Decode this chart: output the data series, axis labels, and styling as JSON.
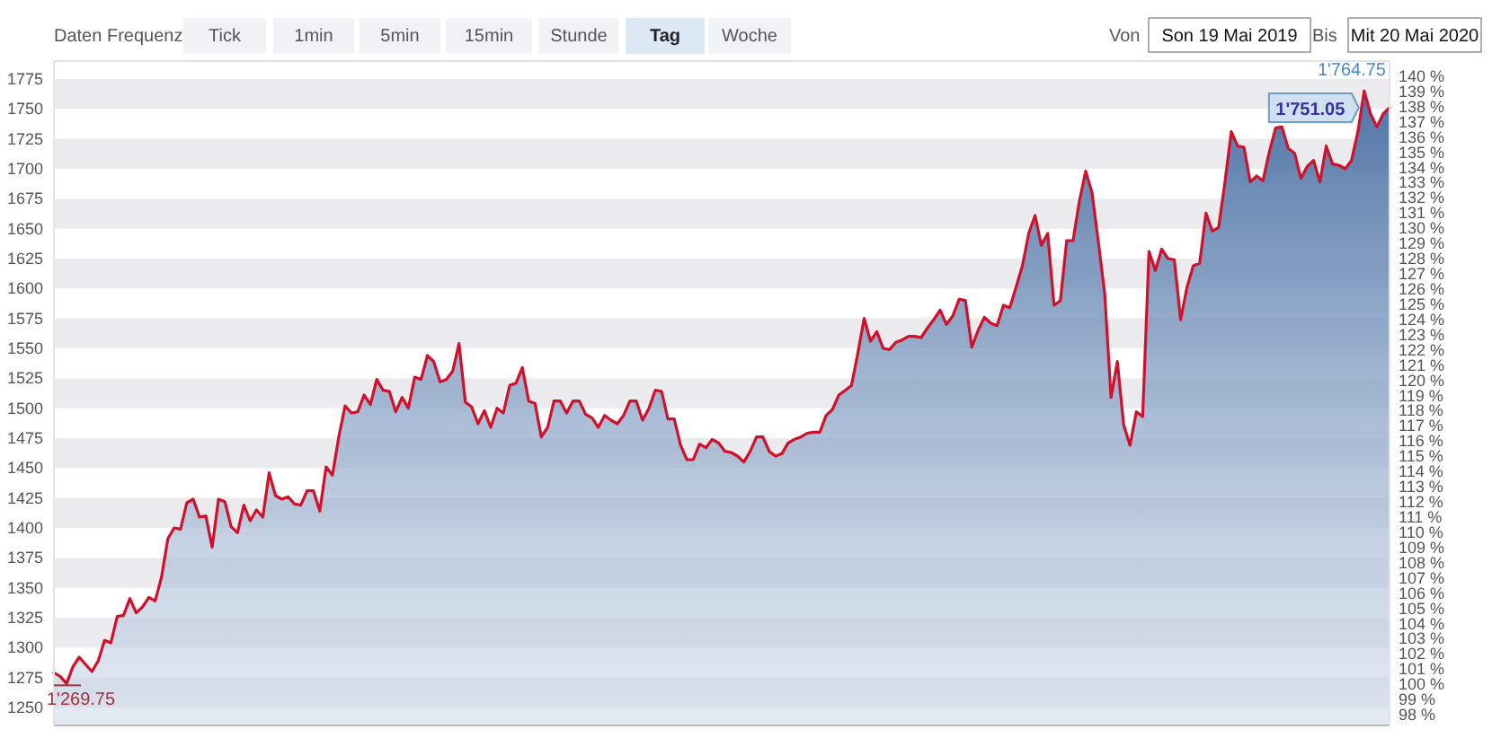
{
  "chart_data": {
    "type": "area",
    "categories": [
      null,
      null,
      null,
      null,
      null,
      null,
      null,
      null,
      null,
      null,
      null,
      null,
      null,
      null,
      null,
      null,
      null,
      null,
      null,
      null,
      null,
      null,
      null,
      null,
      null,
      null,
      null,
      null,
      null,
      null,
      null,
      null,
      null,
      null,
      null,
      null,
      null,
      null,
      null,
      null,
      null,
      null,
      null,
      null,
      null,
      null,
      null,
      null,
      null,
      null,
      null,
      null,
      null,
      null,
      null,
      null,
      null,
      null,
      null,
      null,
      null,
      null,
      null,
      null,
      null,
      null,
      null,
      null,
      null,
      null,
      null,
      null,
      null,
      null,
      null,
      null,
      null,
      null,
      null,
      null,
      null,
      null,
      null,
      null,
      null,
      null,
      null,
      null,
      null,
      null,
      null,
      null,
      null,
      null,
      null,
      null,
      null,
      null,
      null,
      null,
      null,
      null,
      null,
      null,
      null,
      null,
      null,
      null,
      null,
      null,
      null,
      null,
      null,
      null,
      null,
      null,
      null,
      null,
      null,
      null,
      null,
      null,
      null,
      null,
      null,
      null,
      null,
      null,
      null,
      null,
      null,
      null,
      null,
      null,
      null,
      null,
      null,
      null,
      null,
      null,
      null,
      null,
      null,
      null,
      null,
      null,
      null,
      null,
      null,
      null,
      null,
      null,
      null,
      null,
      null,
      null,
      null,
      null,
      null,
      null,
      null,
      null,
      null,
      null,
      null,
      null,
      null,
      null,
      null,
      null,
      null,
      null,
      null,
      null,
      null,
      null,
      null,
      null,
      null,
      null,
      null,
      null,
      null,
      null,
      null,
      null,
      null,
      null,
      null,
      null,
      null,
      null,
      null,
      null,
      null,
      null,
      null,
      null,
      null,
      null,
      null,
      null,
      null,
      null,
      null,
      null,
      null,
      null,
      null,
      null,
      null,
      null
    ],
    "series": [
      {
        "color": "#d0112b",
        "values": [
          1279,
          1276,
          1270,
          1284,
          1292,
          1286,
          1280,
          1289,
          1306,
          1304,
          1326,
          1327,
          1341,
          1329,
          1334,
          1342,
          1339,
          1359,
          1391,
          1400,
          1399,
          1421,
          1424,
          1409,
          1410,
          1384,
          1424,
          1422,
          1401,
          1396,
          1419,
          1406,
          1415,
          1409,
          1446,
          1427,
          1424,
          1426,
          1420,
          1419,
          1431,
          1431,
          1414,
          1451,
          1444,
          1476,
          1502,
          1496,
          1497,
          1511,
          1503,
          1524,
          1515,
          1514,
          1497,
          1509,
          1500,
          1526,
          1524,
          1544,
          1539,
          1522,
          1524,
          1531,
          1554,
          1505,
          1501,
          1487,
          1498,
          1484,
          1500,
          1496,
          1519,
          1521,
          1534,
          1506,
          1504,
          1476,
          1484,
          1506,
          1506,
          1496,
          1506,
          1506,
          1495,
          1492,
          1484,
          1494,
          1490,
          1487,
          1494,
          1506,
          1506,
          1490,
          1500,
          1515,
          1514,
          1491,
          1491,
          1469,
          1457,
          1457,
          1470,
          1467,
          1474,
          1471,
          1464,
          1463,
          1460,
          1455,
          1464,
          1476,
          1476,
          1464,
          1460,
          1462,
          1471,
          1474,
          1476,
          1479,
          1480,
          1480,
          1494,
          1499,
          1511,
          1515,
          1519,
          1546,
          1575,
          1556,
          1564,
          1550,
          1549,
          1555,
          1557,
          1560,
          1560,
          1559,
          1567,
          1574,
          1582,
          1570,
          1577,
          1591,
          1590,
          1551,
          1565,
          1576,
          1571,
          1569,
          1586,
          1584,
          1601,
          1619,
          1646,
          1661,
          1636,
          1646,
          1586,
          1590,
          1640,
          1640,
          1673,
          1698,
          1680,
          1639,
          1596,
          1509,
          1539,
          1486,
          1469,
          1497,
          1493,
          1631,
          1615,
          1633,
          1625,
          1624,
          1574,
          1601,
          1619,
          1621,
          1663,
          1648,
          1651,
          1689,
          1731,
          1719,
          1718,
          1689,
          1694,
          1690,
          1714,
          1734,
          1735,
          1717,
          1713,
          1692,
          1702,
          1707,
          1689,
          1719,
          1704,
          1703,
          1700,
          1707,
          1731,
          1765,
          1746,
          1735,
          1746,
          1751
        ]
      }
    ],
    "ylim": [
      1235,
      1790
    ],
    "yticks": [
      1250,
      1275,
      1300,
      1325,
      1350,
      1375,
      1400,
      1425,
      1450,
      1475,
      1500,
      1525,
      1550,
      1575,
      1600,
      1625,
      1650,
      1675,
      1700,
      1725,
      1750,
      1775
    ],
    "y2lim": [
      97.3,
      141
    ],
    "y2ticks": [
      {
        "value": 98,
        "label": "98 %"
      },
      {
        "value": 99,
        "label": "99 %"
      },
      {
        "value": 100,
        "label": "100 %"
      },
      {
        "value": 101,
        "label": "101 %"
      },
      {
        "value": 102,
        "label": "102 %"
      },
      {
        "value": 103,
        "label": "103 %"
      },
      {
        "value": 104,
        "label": "104 %"
      },
      {
        "value": 105,
        "label": "105 %"
      },
      {
        "value": 106,
        "label": "106 %"
      },
      {
        "value": 107,
        "label": "107 %"
      },
      {
        "value": 108,
        "label": "108 %"
      },
      {
        "value": 109,
        "label": "109 %"
      },
      {
        "value": 110,
        "label": "110 %"
      },
      {
        "value": 111,
        "label": "111 %"
      },
      {
        "value": 112,
        "label": "112 %"
      },
      {
        "value": 113,
        "label": "113 %"
      },
      {
        "value": 114,
        "label": "114 %"
      },
      {
        "value": 115,
        "label": "115 %"
      },
      {
        "value": 116,
        "label": "116 %"
      },
      {
        "value": 117,
        "label": "117 %"
      },
      {
        "value": 118,
        "label": "118 %"
      },
      {
        "value": 119,
        "label": "119 %"
      },
      {
        "value": 120,
        "label": "120 %"
      },
      {
        "value": 121,
        "label": "121 %"
      },
      {
        "value": 122,
        "label": "122 %"
      },
      {
        "value": 123,
        "label": "123 %"
      },
      {
        "value": 124,
        "label": "124 %"
      },
      {
        "value": 125,
        "label": "125 %"
      },
      {
        "value": 126,
        "label": "126 %"
      },
      {
        "value": 127,
        "label": "127 %"
      },
      {
        "value": 128,
        "label": "128 %"
      },
      {
        "value": 129,
        "label": "129 %"
      },
      {
        "value": 130,
        "label": "130 %"
      },
      {
        "value": 131,
        "label": "131 %"
      },
      {
        "value": 132,
        "label": "132 %"
      },
      {
        "value": 133,
        "label": "133 %"
      },
      {
        "value": 134,
        "label": "134 %"
      },
      {
        "value": 135,
        "label": "135 %"
      },
      {
        "value": 136,
        "label": "136 %"
      },
      {
        "value": 137,
        "label": "137 %"
      },
      {
        "value": 138,
        "label": "138 %"
      },
      {
        "value": 139,
        "label": "139 %"
      },
      {
        "value": 140,
        "label": "140 %"
      }
    ],
    "tick_labels": "y",
    "annotations": [
      "Daten Frequenz",
      "Tick",
      "1min",
      "5min",
      "15min",
      "Stunde",
      "Tag",
      "Woche",
      "Von",
      "Son 19 Mai 2019",
      "Bis",
      "Mit 20 Mai 2020",
      "1'269.75",
      "1'764.75",
      "1'751.05"
    ]
  }
}
